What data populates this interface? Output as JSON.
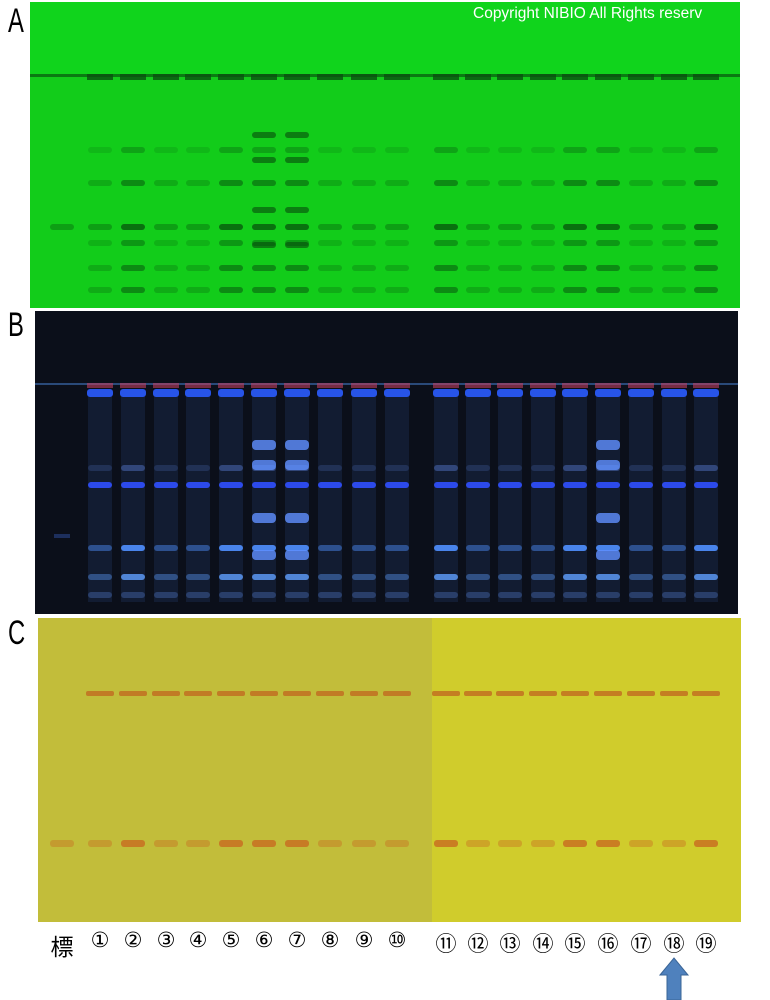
{
  "figure": {
    "panels": [
      {
        "label": "A",
        "illumination": "UV 254 nm green plate",
        "color": "#12cc1a"
      },
      {
        "label": "B",
        "illumination": "UV 365 nm fluorescence",
        "color": "#0b0f1a"
      },
      {
        "label": "C",
        "illumination": "visible stain",
        "color": "#c8c43a"
      }
    ],
    "copyright": "Copyright NIBIO All Rights reserv",
    "lanes": [
      "標",
      "①",
      "②",
      "③",
      "④",
      "⑤",
      "⑥",
      "⑦",
      "⑧",
      "⑨",
      "⑩",
      "⑪",
      "⑫",
      "⑬",
      "⑭",
      "⑮",
      "⑯",
      "⑰",
      "⑱",
      "⑲"
    ],
    "highlighted_lane": "⑱",
    "arrow_color": "#4f81bd"
  }
}
